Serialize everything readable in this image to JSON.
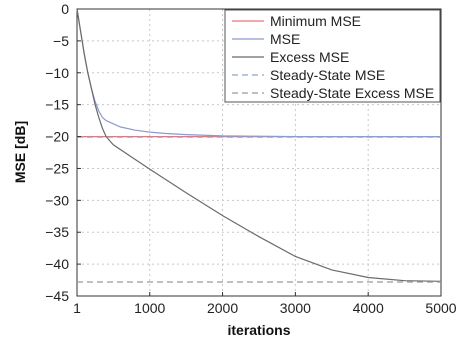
{
  "chart_data": {
    "type": "line",
    "xlabel": "iterations",
    "ylabel": "MSE [dB]",
    "xlim": [
      1,
      5000
    ],
    "ylim": [
      -45,
      0
    ],
    "x_ticks": [
      1,
      1000,
      2000,
      3000,
      4000,
      5000
    ],
    "x_tick_labels": [
      "1",
      "1000",
      "2000",
      "3000",
      "4000",
      "5000"
    ],
    "y_ticks": [
      0,
      -5,
      -10,
      -15,
      -20,
      -25,
      -30,
      -35,
      -40,
      -45
    ],
    "y_tick_labels": [
      "0",
      "−5",
      "−10",
      "−15",
      "−20",
      "−25",
      "−30",
      "−35",
      "−40",
      "−45"
    ],
    "grid": true,
    "legend_position": "top-right",
    "series": [
      {
        "name": "Minimum MSE",
        "color": "#e8747c",
        "dash": "solid",
        "x": [
          1,
          5000
        ],
        "y": [
          -20,
          -20
        ]
      },
      {
        "name": "MSE",
        "color": "#8c9ad0",
        "dash": "solid",
        "x": [
          1,
          50,
          100,
          150,
          200,
          250,
          300,
          350,
          400,
          500,
          600,
          800,
          1000,
          1200,
          1500,
          2000,
          2500,
          3000,
          4000,
          5000
        ],
        "y": [
          0,
          -3.5,
          -7,
          -10,
          -12.5,
          -14.5,
          -16,
          -17,
          -17.5,
          -18,
          -18.5,
          -19,
          -19.3,
          -19.5,
          -19.7,
          -19.9,
          -19.95,
          -20,
          -20,
          -20
        ]
      },
      {
        "name": "Excess MSE",
        "color": "#6b6b6b",
        "dash": "solid",
        "x": [
          1,
          50,
          100,
          150,
          200,
          250,
          300,
          350,
          400,
          500,
          750,
          1000,
          1500,
          2000,
          2500,
          3000,
          3500,
          4000,
          4500,
          5000
        ],
        "y": [
          0,
          -3.5,
          -7,
          -10,
          -12.5,
          -15,
          -17,
          -18.7,
          -20,
          -21.3,
          -23.2,
          -25.1,
          -28.8,
          -32.4,
          -35.7,
          -38.8,
          -40.9,
          -42.1,
          -42.6,
          -42.7
        ]
      },
      {
        "name": "Steady-State MSE",
        "color": "#8aa8c8",
        "dash": "dashed",
        "x": [
          1,
          5000
        ],
        "y": [
          -20.1,
          -20.1
        ]
      },
      {
        "name": "Steady-State Excess MSE",
        "color": "#9a9a9a",
        "dash": "dashed",
        "x": [
          1,
          5000
        ],
        "y": [
          -42.8,
          -42.8
        ]
      }
    ]
  }
}
